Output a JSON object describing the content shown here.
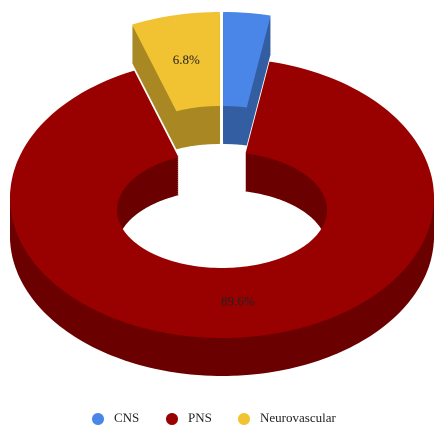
{
  "chart_data": {
    "type": "pie",
    "categories": [
      "CNS",
      "PNS",
      "Neurovascular"
    ],
    "values": [
      3.6,
      89.6,
      6.8
    ],
    "value_labels": [
      null,
      "89.6%",
      "6.8%"
    ],
    "colors": [
      "#4a86e8",
      "#990000",
      "#f1c232"
    ],
    "donut": true,
    "three_d": true,
    "legend": "bottom"
  }
}
